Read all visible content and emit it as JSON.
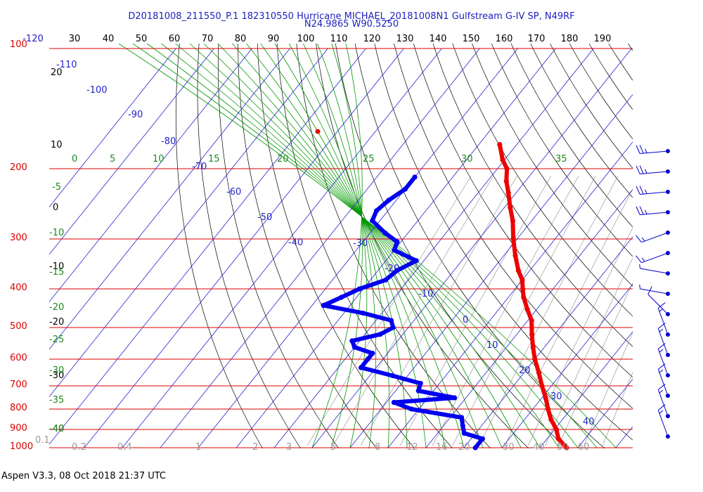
{
  "header": {
    "title_line1": "D20181008_211550_P.1 182310550 Hurricane MICHAEL_20181008N1 Gulfstream G-IV SP, N49RF",
    "title_line2": "N24.9865 W90.5250"
  },
  "footer": {
    "text": "Aspen V3.3, 08 Oct 2018  21:37 UTC"
  },
  "colors": {
    "isobar": "#dd0000",
    "temperature": "#ee0000",
    "dewpoint": "#0000ee",
    "isotherm": "#2222cc",
    "mixing_ratio": "#888888",
    "moist_adiabat": "#009900",
    "dry_adiabat": "#000000",
    "wind": "#0000cc"
  },
  "chart_data": {
    "type": "scatter",
    "title": "D20181008_211550_P.1 182310550 Hurricane MICHAEL_20181008N1 Gulfstream G-IV SP, N49RF",
    "subtitle": "N24.9865 W90.5250",
    "ylim": [
      1000,
      100
    ],
    "pressure_ticks": [
      "100",
      "200",
      "300",
      "400",
      "500",
      "600",
      "700",
      "800",
      "900",
      "1000"
    ],
    "top_ticks": [
      "-120",
      "30",
      "40",
      "50",
      "60",
      "70",
      "80",
      "90",
      "100",
      "110",
      "120",
      "130",
      "140",
      "150",
      "160",
      "170",
      "180",
      "190"
    ],
    "isotherm_labels": [
      "-110",
      "-100",
      "-90",
      "-80",
      "-70",
      "-60",
      "-50",
      "-40",
      "-30",
      "-20",
      "-10",
      "0",
      "10",
      "20",
      "30",
      "40"
    ],
    "dry_adiabat_labels": [
      "20",
      "10",
      "0",
      "-10",
      "-20",
      "-30",
      "-40"
    ],
    "moist_adiabat_labels": [
      "0",
      "5",
      "10",
      "15",
      "20",
      "25",
      "30",
      "35",
      "-5",
      "-10",
      "-15",
      "-20",
      "-25",
      "-30",
      "-35",
      "-40"
    ],
    "mixing_ratio_labels": [
      "0.1",
      "0.2",
      "0.4",
      "1",
      "2",
      "3",
      "5",
      "8",
      "12",
      "16",
      "20",
      "30",
      "40",
      "50",
      "60"
    ],
    "series": [
      {
        "name": "temperature",
        "points": [
          [
            174,
            -54.5
          ],
          [
            190,
            -50.5
          ],
          [
            200,
            -47.5
          ],
          [
            215,
            -45
          ],
          [
            230,
            -42
          ],
          [
            250,
            -38.5
          ],
          [
            270,
            -35
          ],
          [
            300,
            -31
          ],
          [
            330,
            -27
          ],
          [
            360,
            -23
          ],
          [
            380,
            -20
          ],
          [
            400,
            -18
          ],
          [
            420,
            -16
          ],
          [
            450,
            -12.5
          ],
          [
            480,
            -9
          ],
          [
            520,
            -6
          ],
          [
            560,
            -3
          ],
          [
            600,
            0
          ],
          [
            650,
            4
          ],
          [
            700,
            7.5
          ],
          [
            750,
            11
          ],
          [
            800,
            14
          ],
          [
            850,
            17
          ],
          [
            900,
            20.5
          ],
          [
            950,
            23
          ],
          [
            1000,
            27
          ]
        ]
      },
      {
        "name": "dewpoint",
        "points": [
          [
            210,
            -70
          ],
          [
            225,
            -70
          ],
          [
            240,
            -72
          ],
          [
            255,
            -73
          ],
          [
            270,
            -72
          ],
          [
            290,
            -66
          ],
          [
            305,
            -61
          ],
          [
            320,
            -60
          ],
          [
            340,
            -52
          ],
          [
            360,
            -55
          ],
          [
            380,
            -56
          ],
          [
            400,
            -61
          ],
          [
            420,
            -64
          ],
          [
            440,
            -67
          ],
          [
            460,
            -55
          ],
          [
            480,
            -46
          ],
          [
            500,
            -44
          ],
          [
            520,
            -46
          ],
          [
            540,
            -52
          ],
          [
            560,
            -50
          ],
          [
            580,
            -44
          ],
          [
            600,
            -44
          ],
          [
            630,
            -44
          ],
          [
            660,
            -34
          ],
          [
            690,
            -25
          ],
          [
            720,
            -24
          ],
          [
            750,
            -13
          ],
          [
            770,
            -28
          ],
          [
            800,
            -22
          ],
          [
            840,
            -7
          ],
          [
            880,
            -5
          ],
          [
            920,
            -3
          ],
          [
            950,
            3
          ],
          [
            1000,
            3
          ]
        ]
      }
    ],
    "wind_barbs": [
      {
        "pressure": 180,
        "speed_kt": 25,
        "direction_deg": 265
      },
      {
        "pressure": 205,
        "speed_kt": 25,
        "direction_deg": 265
      },
      {
        "pressure": 235,
        "speed_kt": 25,
        "direction_deg": 265
      },
      {
        "pressure": 265,
        "speed_kt": 25,
        "direction_deg": 265
      },
      {
        "pressure": 300,
        "speed_kt": 15,
        "direction_deg": 250
      },
      {
        "pressure": 350,
        "speed_kt": 15,
        "direction_deg": 250
      },
      {
        "pressure": 400,
        "speed_kt": 5,
        "direction_deg": 280
      },
      {
        "pressure": 450,
        "speed_kt": 5,
        "direction_deg": 280
      },
      {
        "pressure": 520,
        "speed_kt": 10,
        "direction_deg": 315
      },
      {
        "pressure": 600,
        "speed_kt": 15,
        "direction_deg": 340
      },
      {
        "pressure": 680,
        "speed_kt": 15,
        "direction_deg": 340
      },
      {
        "pressure": 760,
        "speed_kt": 15,
        "direction_deg": 340
      },
      {
        "pressure": 840,
        "speed_kt": 15,
        "direction_deg": 340
      },
      {
        "pressure": 900,
        "speed_kt": 15,
        "direction_deg": 340
      },
      {
        "pressure": 960,
        "speed_kt": 15,
        "direction_deg": 340
      }
    ]
  }
}
